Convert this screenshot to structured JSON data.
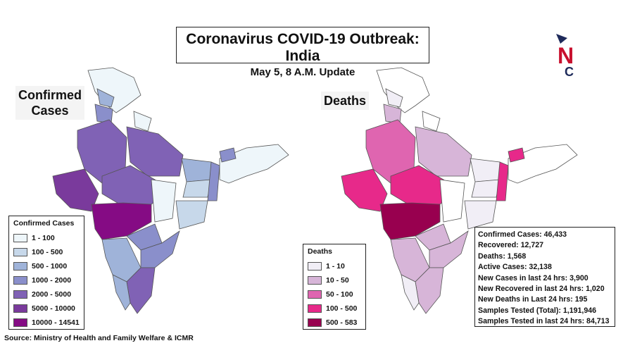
{
  "title": "Coronavirus COVID-19 Outbreak: India",
  "subtitle": "May 5, 8 A.M. Update",
  "logo": {
    "letters": [
      "N",
      "C"
    ],
    "colors": {
      "navy": "#1e2a5a",
      "red": "#c8102e"
    }
  },
  "left_map": {
    "label_line1": "Confirmed",
    "label_line2": "Cases",
    "legend_title": "Confirmed Cases",
    "legend": [
      {
        "label": "1 - 100",
        "color": "#eef6fa"
      },
      {
        "label": "100 - 500",
        "color": "#c7d8ea"
      },
      {
        "label": "500 - 1000",
        "color": "#9fb3d9"
      },
      {
        "label": "1000 - 2000",
        "color": "#8a8fcb"
      },
      {
        "label": "2000 - 5000",
        "color": "#8062b5"
      },
      {
        "label": "5000 - 10000",
        "color": "#7a3a9c"
      },
      {
        "label": "10000 - 14541",
        "color": "#850b84"
      }
    ]
  },
  "right_map": {
    "label": "Deaths",
    "legend_title": "Deaths",
    "legend": [
      {
        "label": "1 - 10",
        "color": "#f1eef6"
      },
      {
        "label": "10 - 50",
        "color": "#d7b5d8"
      },
      {
        "label": "50 - 100",
        "color": "#df65b0"
      },
      {
        "label": "100 - 500",
        "color": "#e7298a"
      },
      {
        "label": "500 - 583",
        "color": "#98004f"
      }
    ]
  },
  "stats": [
    "Confirmed Cases: 46,433",
    "Recovered: 12,727",
    "Deaths: 1,568",
    "Active Cases:  32,138",
    "New Cases in last 24 hrs: 3,900",
    "New Recovered in last 24 hrs: 1,020",
    "New Deaths in Last 24 hrs: 195",
    "Samples Tested (Total): 1,191,946",
    "Samples Tested in last 24 hrs: 84,713"
  ],
  "source": "Source: Ministry of Health and Family Welfare & ICMR"
}
